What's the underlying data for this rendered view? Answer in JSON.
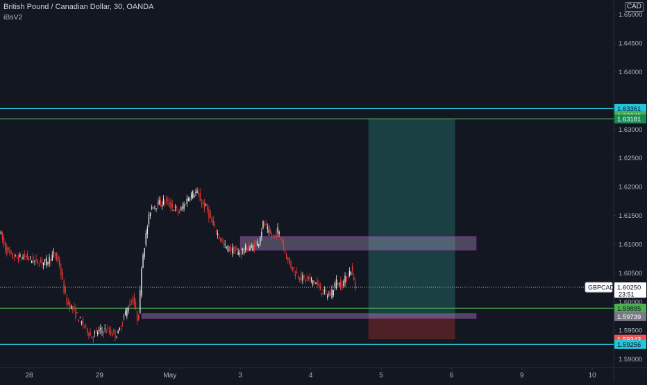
{
  "header": {
    "title": "British Pound / Canadian Dollar, 30, OANDA",
    "indicator": "iBsV2",
    "currency": "CAD"
  },
  "colors": {
    "background": "#131722",
    "up_candle": "#e8e8e8",
    "down_candle": "#e53935",
    "cyan_line": "#26c6da",
    "green_line": "#4caf50",
    "zone_fill": "#b7a6cf",
    "zone_border": "#9c27b0",
    "target_fill": "#1f4f4f",
    "stop_fill": "#5e2428",
    "axis_text": "#b2b5be"
  },
  "chart_data": {
    "type": "candlestick",
    "symbol": "GBPCAD",
    "timeframe": "30",
    "y_axis": {
      "ticks": [
        "1.65000",
        "1.64500",
        "1.64000",
        "1.63000",
        "1.62500",
        "1.62000",
        "1.61500",
        "1.61000",
        "1.60500",
        "1.60000",
        "1.59500",
        "1.59000"
      ],
      "range": [
        1.5885,
        1.6525
      ]
    },
    "x_axis": {
      "ticks": [
        {
          "label": "28",
          "day": 0
        },
        {
          "label": "29",
          "day": 1
        },
        {
          "label": "May",
          "day": 2
        },
        {
          "label": "3",
          "day": 3
        },
        {
          "label": "4",
          "day": 4
        },
        {
          "label": "5",
          "day": 5
        },
        {
          "label": "6",
          "day": 6
        },
        {
          "label": "9",
          "day": 7
        },
        {
          "label": "10",
          "day": 8
        }
      ]
    },
    "price_path": [
      [
        -0.4,
        1.6125
      ],
      [
        -0.33,
        1.6095
      ],
      [
        -0.25,
        1.608
      ],
      [
        -0.15,
        1.6075
      ],
      [
        -0.05,
        1.6078
      ],
      [
        0.1,
        1.607
      ],
      [
        0.25,
        1.6068
      ],
      [
        0.38,
        1.6082
      ],
      [
        0.45,
        1.6065
      ],
      [
        0.5,
        1.603
      ],
      [
        0.55,
        1.6
      ],
      [
        0.65,
        1.5985
      ],
      [
        0.75,
        1.5965
      ],
      [
        0.85,
        1.595
      ],
      [
        0.9,
        1.5938
      ],
      [
        1.0,
        1.5948
      ],
      [
        1.1,
        1.595
      ],
      [
        1.2,
        1.5945
      ],
      [
        1.28,
        1.5942
      ],
      [
        1.35,
        1.5968
      ],
      [
        1.42,
        1.599
      ],
      [
        1.5,
        1.6005
      ],
      [
        1.55,
        1.597
      ],
      [
        1.58,
        1.5975
      ],
      [
        1.62,
        1.607
      ],
      [
        1.7,
        1.613
      ],
      [
        1.75,
        1.6165
      ],
      [
        1.85,
        1.617
      ],
      [
        1.95,
        1.6175
      ],
      [
        2.05,
        1.6165
      ],
      [
        2.15,
        1.6155
      ],
      [
        2.22,
        1.6168
      ],
      [
        2.3,
        1.6185
      ],
      [
        2.4,
        1.619
      ],
      [
        2.48,
        1.617
      ],
      [
        2.55,
        1.616
      ],
      [
        2.62,
        1.6135
      ],
      [
        2.7,
        1.6118
      ],
      [
        2.8,
        1.6095
      ],
      [
        2.9,
        1.609
      ],
      [
        3.0,
        1.6085
      ],
      [
        3.1,
        1.6092
      ],
      [
        3.2,
        1.6095
      ],
      [
        3.28,
        1.6105
      ],
      [
        3.35,
        1.6138
      ],
      [
        3.42,
        1.612
      ],
      [
        3.5,
        1.611
      ],
      [
        3.55,
        1.6125
      ],
      [
        3.62,
        1.6102
      ],
      [
        3.7,
        1.607
      ],
      [
        3.8,
        1.605
      ],
      [
        3.9,
        1.604
      ],
      [
        4.0,
        1.6038
      ],
      [
        4.08,
        1.6035
      ],
      [
        4.15,
        1.6022
      ],
      [
        4.22,
        1.6013
      ],
      [
        4.3,
        1.6012
      ],
      [
        4.38,
        1.6035
      ],
      [
        4.45,
        1.6028
      ],
      [
        4.52,
        1.604
      ],
      [
        4.6,
        1.6058
      ],
      [
        4.65,
        1.6025
      ]
    ],
    "lines": [
      {
        "price": 1.63361,
        "color": "cyan",
        "label": "1.63361"
      },
      {
        "price": 1.63181,
        "color": "green",
        "label": "1.63181"
      },
      {
        "price": 1.59885,
        "color": "green",
        "label": "1.59885"
      },
      {
        "price": 1.59256,
        "color": "cyan",
        "label": "1.59256"
      }
    ],
    "axis_labels": [
      {
        "price": 1.63361,
        "text": "1.63361",
        "bg": "#26c6da",
        "fg": "#131722"
      },
      {
        "price": 1.6324,
        "text": "1.63240",
        "bg": "#4caf50",
        "fg": "#ffffff"
      },
      {
        "price": 1.63181,
        "text": "1.63181",
        "bg": "#1b8a52",
        "fg": "#ffffff"
      },
      {
        "price": 1.59885,
        "text": "1.59885",
        "bg": "#4caf50",
        "fg": "#131722"
      },
      {
        "price": 1.59739,
        "text": "1.59739",
        "bg": "#7a7a86",
        "fg": "#ffffff"
      },
      {
        "price": 1.59343,
        "text": "1.59343",
        "bg": "#ef5350",
        "fg": "#ffffff"
      },
      {
        "price": 1.59256,
        "text": "1.59256",
        "bg": "#26c6da",
        "fg": "#131722"
      }
    ],
    "zones": [
      {
        "day_start": 3.0,
        "day_end": 6.35,
        "top": 1.61135,
        "bottom": 1.60895
      },
      {
        "day_start": 1.6,
        "day_end": 6.35,
        "top": 1.59795,
        "bottom": 1.59705
      }
    ],
    "position": {
      "day_start": 4.82,
      "day_end": 6.05,
      "entry": 1.59739,
      "target": 1.63181,
      "stop": 1.59343
    },
    "current": {
      "symbol": "GBPCAD",
      "price": 1.6025,
      "price_label": "1.60250",
      "countdown": "23:51"
    }
  }
}
